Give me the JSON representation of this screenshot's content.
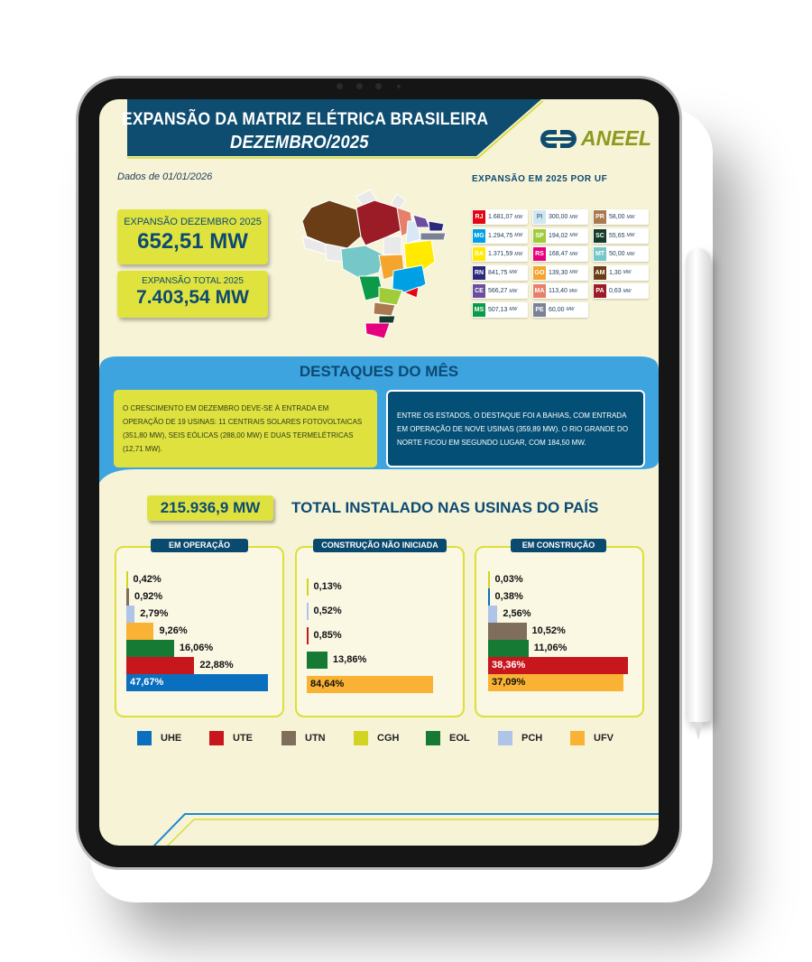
{
  "header": {
    "title": "EXPANSÃO DA MATRIZ ELÉTRICA BRASILEIRA",
    "subtitle": "DEZEMBRO/2025",
    "logo_text": "ANEEL"
  },
  "data_date": "Dados de 01/01/2026",
  "kpis": [
    {
      "label": "EXPANSÃO DEZEMBRO 2025",
      "value": "652,51 MW"
    },
    {
      "label": "EXPANSÃO TOTAL 2025",
      "value": "7.403,54 MW"
    }
  ],
  "uf_section": {
    "title": "EXPANSÃO EM 2025 POR UF",
    "items": [
      {
        "uf": "RJ",
        "value": "1.681,07",
        "color": "#e30613"
      },
      {
        "uf": "MG",
        "value": "1.294,75",
        "color": "#00a1e4"
      },
      {
        "uf": "BA",
        "value": "1.371,59",
        "color": "#ffea00"
      },
      {
        "uf": "RN",
        "value": "841,75",
        "color": "#2b2a7a"
      },
      {
        "uf": "CE",
        "value": "566,27",
        "color": "#6d4d9e"
      },
      {
        "uf": "MS",
        "value": "507,13",
        "color": "#0a9a48"
      },
      {
        "uf": "PI",
        "value": "300,00",
        "color": "#cfe6f3"
      },
      {
        "uf": "SP",
        "value": "194,02",
        "color": "#a1cc3a"
      },
      {
        "uf": "RS",
        "value": "168,47",
        "color": "#e5007e"
      },
      {
        "uf": "GO",
        "value": "139,30",
        "color": "#f4a52e"
      },
      {
        "uf": "MA",
        "value": "113,40",
        "color": "#e6806a"
      },
      {
        "uf": "PE",
        "value": "60,00",
        "color": "#7a8296"
      },
      {
        "uf": "PR",
        "value": "58,00",
        "color": "#a97a4f"
      },
      {
        "uf": "SC",
        "value": "55,65",
        "color": "#173b2a"
      },
      {
        "uf": "MT",
        "value": "50,00",
        "color": "#75c7c8"
      },
      {
        "uf": "AM",
        "value": "1,30",
        "color": "#6b3d16"
      },
      {
        "uf": "PA",
        "value": "0,63",
        "color": "#9b1b26"
      }
    ],
    "unit": "MW"
  },
  "highlights": {
    "title": "DESTAQUES DO MÊS",
    "left": "O CRESCIMENTO EM DEZEMBRO DEVE-SE À ENTRADA EM OPERAÇÃO DE 19 USINAS: 11 CENTRAIS SOLARES FOTOVOLTAICAS (351,80 MW), SEIS EÓLICAS (288,00 MW) E DUAS TERMELÉTRICAS (12,71 MW).",
    "right": "ENTRE OS ESTADOS, O DESTAQUE FOI A BAHIAS, COM ENTRADA EM OPERAÇÃO DE NOVE USINAS (359,89 MW). O RIO GRANDE DO NORTE FICOU EM SEGUNDO LUGAR, COM 184,50 MW."
  },
  "total": {
    "value": "215.936,9 MW",
    "label": "TOTAL INSTALADO NAS USINAS DO PAÍS"
  },
  "colors": {
    "UHE": "#0a6fbf",
    "UTE": "#c8161d",
    "UTN": "#7f6e5b",
    "CGH": "#d3d321",
    "EOL": "#167a35",
    "PCH": "#aec4e8",
    "UFV": "#f9b233"
  },
  "chart_data": [
    {
      "type": "bar",
      "title": "EM OPERAÇÃO",
      "categories": [
        "CGH",
        "UTN",
        "PCH",
        "UFV",
        "EOL",
        "UTE",
        "UHE"
      ],
      "values": [
        0.42,
        0.92,
        2.79,
        9.26,
        16.06,
        22.88,
        47.67
      ],
      "labels": [
        "0,42%",
        "0,92%",
        "2,79%",
        "9,26%",
        "16,06%",
        "22,88%",
        "47,67%"
      ]
    },
    {
      "type": "bar",
      "title": "CONSTRUÇÃO NÃO INICIADA",
      "categories": [
        "CGH",
        "PCH",
        "UTE",
        "EOL",
        "UFV"
      ],
      "values": [
        0.13,
        0.52,
        0.85,
        13.86,
        84.64
      ],
      "labels": [
        "0,13%",
        "0,52%",
        "0,85%",
        "13,86%",
        "84,64%"
      ]
    },
    {
      "type": "bar",
      "title": "EM CONSTRUÇÃO",
      "categories": [
        "CGH",
        "UHE",
        "PCH",
        "UTN",
        "EOL",
        "UTE",
        "UFV"
      ],
      "values": [
        0.03,
        0.38,
        2.56,
        10.52,
        11.06,
        38.36,
        37.09
      ],
      "labels": [
        "0,03%",
        "0,38%",
        "2,56%",
        "10,52%",
        "11,06%",
        "38,36%",
        "37,09%"
      ]
    }
  ],
  "legend": [
    "UHE",
    "UTE",
    "UTN",
    "CGH",
    "EOL",
    "PCH",
    "UFV"
  ]
}
